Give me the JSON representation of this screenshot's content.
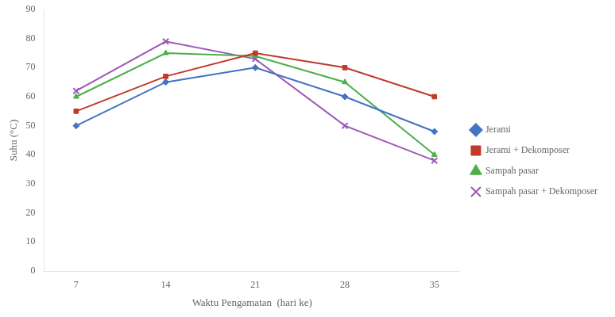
{
  "chart_data": {
    "type": "line",
    "x": [
      7,
      14,
      21,
      28,
      35
    ],
    "series": [
      {
        "name": "Jerami",
        "color": "#4472C4",
        "marker": "diamond",
        "values": [
          50,
          65,
          70,
          60,
          48
        ]
      },
      {
        "name": "Jerami + Dekomposer",
        "color": "#C0392B",
        "marker": "square",
        "values": [
          55,
          67,
          75,
          70,
          60
        ]
      },
      {
        "name": "Sampah pasar",
        "color": "#4DAF4A",
        "marker": "triangle",
        "values": [
          60,
          75,
          74,
          65,
          40
        ]
      },
      {
        "name": "Sampah pasar + Dekomposer",
        "color": "#9B59B6",
        "marker": "x",
        "values": [
          62,
          79,
          73,
          50,
          38
        ]
      }
    ],
    "xlabel": "Waktu Pengamatan  (hari ke)",
    "ylabel": "Suhu (°C)",
    "xlim": [
      4.5,
      37
    ],
    "xticks": [
      7,
      14,
      21,
      28,
      35
    ],
    "ylim": [
      0,
      90
    ],
    "yticks": [
      0,
      10,
      20,
      30,
      40,
      50,
      60,
      70,
      80,
      90
    ],
    "grid": false,
    "legend": "right"
  }
}
